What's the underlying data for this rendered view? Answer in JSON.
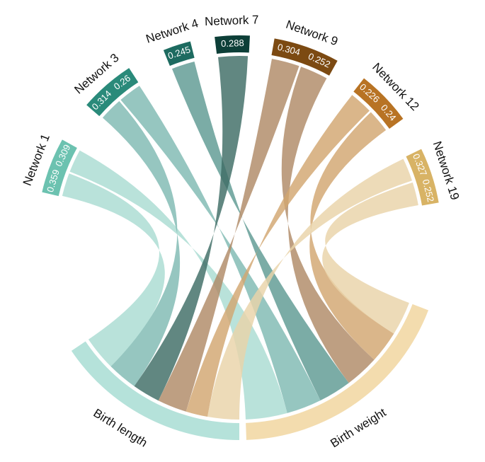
{
  "chart_data": {
    "type": "chord",
    "networks": [
      {
        "name": "Network 1",
        "color": "#6cc2b0",
        "ribbon_color": "#a9dcd2",
        "birth_length": 0.359,
        "birth_weight": 0.309
      },
      {
        "name": "Network 3",
        "color": "#2a8a7a",
        "ribbon_color": "#7fb9b2",
        "birth_length": 0.314,
        "birth_weight": 0.26
      },
      {
        "name": "Network 4",
        "color": "#1d6b60",
        "ribbon_color": "#5e9a92",
        "birth_length": null,
        "birth_weight": 0.245
      },
      {
        "name": "Network 7",
        "color": "#0d3f38",
        "ribbon_color": "#3e6c65",
        "birth_length": 0.288,
        "birth_weight": null
      },
      {
        "name": "Network 9",
        "color": "#7c4a12",
        "ribbon_color": "#b08a66",
        "birth_length": 0.304,
        "birth_weight": 0.252
      },
      {
        "name": "Network 12",
        "color": "#b87324",
        "ribbon_color": "#d2a670",
        "birth_length": 0.226,
        "birth_weight": 0.24
      },
      {
        "name": "Network 19",
        "color": "#d8b365",
        "ribbon_color": "#e9d3a8",
        "birth_length": 0.327,
        "birth_weight": 0.252
      }
    ],
    "traits": [
      {
        "name": "Birth length",
        "color": "#b5e2da"
      },
      {
        "name": "Birth weight",
        "color": "#f3dcae"
      }
    ]
  }
}
